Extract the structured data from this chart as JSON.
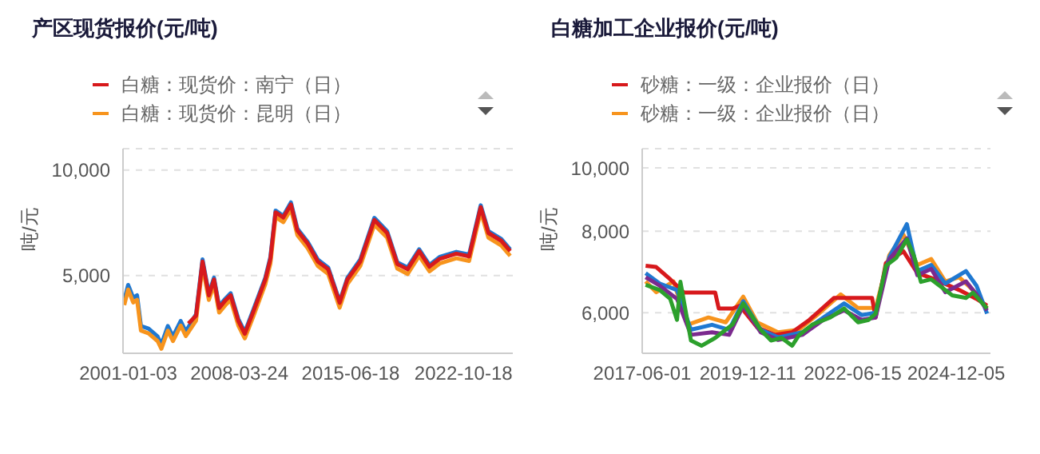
{
  "chart_data": [
    {
      "type": "line",
      "title": "产区现货报价(元/吨)",
      "ylabel": "吨/元",
      "legend": "top left",
      "grid": "y",
      "log": "y",
      "marker": "none",
      "line_style": "solid",
      "xlim": [
        "2000-09-01",
        "2026-01-01"
      ],
      "xticks": [
        {
          "value": "2001-01-03",
          "label": "2001-01-03"
        },
        {
          "value": "2008-03-24",
          "label": "2008-03-24"
        },
        {
          "value": "2015-06-18",
          "label": "2015-06-18"
        },
        {
          "value": "2022-10-18",
          "label": "2022-10-18"
        }
      ],
      "ylim": [
        3000,
        11500
      ],
      "yticks": [
        {
          "value": 5000,
          "label": "5,000"
        },
        {
          "value": 10000,
          "label": "10,000"
        }
      ],
      "series": [
        {
          "color": "#1f78d1",
          "x": [
            "2000-10",
            "2001-01",
            "2001-05",
            "2001-08",
            "2001-11",
            "2002-05",
            "2002-12",
            "2003-03",
            "2003-08",
            "2003-12",
            "2004-06",
            "2004-10",
            "2005-06",
            "2005-11",
            "2006-04",
            "2006-08",
            "2006-12",
            "2007-05",
            "2007-09",
            "2008-03",
            "2008-08",
            "2009-03",
            "2009-12",
            "2010-04",
            "2010-08",
            "2011-02",
            "2011-08",
            "2012-01",
            "2012-09",
            "2013-05",
            "2014-01",
            "2014-10",
            "2015-04",
            "2016-02",
            "2017-01",
            "2017-11",
            "2018-07",
            "2019-03",
            "2019-12",
            "2020-08",
            "2021-04",
            "2022-05",
            "2023-03",
            "2023-12",
            "2024-06",
            "2025-04",
            "2025-11"
          ],
          "values": [
            4250,
            4700,
            4320,
            4390,
            3590,
            3530,
            3350,
            3180,
            3590,
            3350,
            3710,
            3460,
            3880,
            5560,
            4440,
            4930,
            4090,
            4300,
            4450,
            3760,
            3450,
            4020,
            4930,
            5650,
            7660,
            7400,
            8080,
            6800,
            6240,
            5550,
            5270,
            4220,
            4920,
            5550,
            7300,
            6690,
            5450,
            5270,
            5940,
            5360,
            5650,
            5840,
            5740,
            7930,
            6690,
            6360,
            5930
          ]
        },
        {
          "name": "白糖：现货价：昆明（日）",
          "color": "#f7941d",
          "x": [
            "2000-10",
            "2001-01",
            "2001-05",
            "2001-08",
            "2001-11",
            "2002-05",
            "2002-12",
            "2003-03",
            "2003-08",
            "2003-12",
            "2004-06",
            "2004-10",
            "2005-06",
            "2005-11",
            "2006-04",
            "2006-08",
            "2006-12",
            "2007-05",
            "2007-09",
            "2008-03",
            "2008-08",
            "2009-03",
            "2009-12",
            "2010-04",
            "2010-08",
            "2011-02",
            "2011-08",
            "2012-01",
            "2012-09",
            "2013-05",
            "2014-01",
            "2014-10",
            "2015-04",
            "2016-02",
            "2017-01",
            "2017-11",
            "2018-07",
            "2019-03",
            "2019-12",
            "2020-08",
            "2021-04",
            "2022-05",
            "2023-03",
            "2023-12",
            "2024-06",
            "2025-04",
            "2025-11"
          ],
          "values": [
            4120,
            4560,
            4190,
            4260,
            3480,
            3420,
            3250,
            3090,
            3480,
            3250,
            3600,
            3360,
            3720,
            5320,
            4260,
            4720,
            3920,
            4120,
            4260,
            3600,
            3310,
            3850,
            4720,
            5410,
            7340,
            7100,
            7730,
            6520,
            5980,
            5320,
            5050,
            4050,
            4720,
            5320,
            6980,
            6410,
            5230,
            5050,
            5690,
            5140,
            5410,
            5600,
            5500,
            7600,
            6410,
            6090,
            5690
          ]
        },
        {
          "name": "白糖：现货价：南宁（日）",
          "color": "#d7191c",
          "x": [
            "2004-12",
            "2005-06",
            "2005-11",
            "2006-04",
            "2006-08",
            "2006-12",
            "2007-05",
            "2007-09",
            "2008-03",
            "2008-08",
            "2009-03",
            "2009-12",
            "2010-04",
            "2010-08",
            "2011-02",
            "2011-08",
            "2012-01",
            "2012-09",
            "2013-05",
            "2014-01",
            "2014-10",
            "2015-04",
            "2016-02",
            "2017-01",
            "2017-11",
            "2018-07",
            "2019-03",
            "2019-12",
            "2020-08",
            "2021-04",
            "2022-05",
            "2023-03",
            "2023-12",
            "2024-06",
            "2025-04",
            "2025-11"
          ],
          "values": [
            3650,
            3840,
            5480,
            4390,
            4870,
            4040,
            4250,
            4390,
            3710,
            3410,
            3970,
            4870,
            5580,
            7570,
            7320,
            7970,
            6720,
            6170,
            5480,
            5210,
            4180,
            4870,
            5480,
            7200,
            6610,
            5390,
            5210,
            5870,
            5300,
            5580,
            5770,
            5670,
            7830,
            6610,
            6280,
            5870
          ]
        }
      ]
    },
    {
      "type": "line",
      "title": "白糖加工企业报价(元/吨)",
      "ylabel": "吨/元",
      "legend": "top left",
      "grid": "y",
      "log": "y",
      "marker": "none",
      "line_style": "solid",
      "xlim": [
        "2017-06-01",
        "2025-10-01"
      ],
      "xticks": [
        {
          "value": "2017-06-01",
          "label": "2017-06-01"
        },
        {
          "value": "2019-12-11",
          "label": "2019-12-11"
        },
        {
          "value": "2022-06-15",
          "label": "2022-06-15"
        },
        {
          "value": "2024-12-05",
          "label": "2024-12-05"
        }
      ],
      "ylim": [
        5200,
        10700
      ],
      "yticks": [
        {
          "value": 6000,
          "label": "6,000"
        },
        {
          "value": 8000,
          "label": "8,000"
        },
        {
          "value": 10000,
          "label": "10,000"
        }
      ],
      "series": [
        {
          "name": "砂糖：一级：企业报价（日）",
          "color": "#f7941d",
          "x": [
            "2017-07",
            "2017-10",
            "2018-03",
            "2018-07",
            "2019-01",
            "2019-06",
            "2019-11",
            "2020-03",
            "2020-09",
            "2021-03",
            "2021-09",
            "2022-03",
            "2022-08",
            "2023-01",
            "2023-05",
            "2023-09",
            "2024-01",
            "2024-05",
            "2024-09",
            "2025-01",
            "2025-05",
            "2025-09"
          ],
          "values": [
            6700,
            6450,
            6700,
            5750,
            5900,
            5800,
            6350,
            5800,
            5600,
            5650,
            6000,
            6400,
            6100,
            6100,
            7350,
            7900,
            7100,
            7250,
            6700,
            6800,
            6500,
            6100
          ]
        },
        {
          "name": "砂糖：一级：企业报价（日）",
          "color": "#d7191c",
          "x": [
            "2017-07",
            "2017-10",
            "2018-02",
            "2018-06",
            "2019-03",
            "2019-04",
            "2019-08",
            "2019-10",
            "2020-03",
            "2020-08",
            "2021-01",
            "2021-06",
            "2022-01",
            "2022-12",
            "2023-01",
            "2023-04",
            "2023-09",
            "2024-01",
            "2024-06",
            "2025-01",
            "2025-06",
            "2025-09"
          ],
          "values": [
            7080,
            7050,
            6750,
            6440,
            6440,
            6090,
            6090,
            6150,
            5700,
            5550,
            5600,
            5850,
            6320,
            6320,
            5900,
            7150,
            7450,
            6900,
            6750,
            6500,
            6300,
            6150
          ]
        },
        {
          "color": "#1f78d1",
          "x": [
            "2017-07",
            "2017-11",
            "2018-04",
            "2018-08",
            "2019-02",
            "2019-07",
            "2019-11",
            "2020-04",
            "2020-09",
            "2021-04",
            "2021-10",
            "2022-04",
            "2022-09",
            "2023-01",
            "2023-05",
            "2023-10",
            "2024-01",
            "2024-05",
            "2024-09",
            "2025-03",
            "2025-06",
            "2025-09"
          ],
          "values": [
            6900,
            6650,
            6500,
            5650,
            5750,
            5650,
            6250,
            5650,
            5500,
            5600,
            5900,
            6200,
            5950,
            6000,
            7300,
            8200,
            6950,
            7100,
            6650,
            6950,
            6600,
            5980
          ]
        },
        {
          "color": "#7b2a8e",
          "x": [
            "2017-07",
            "2017-11",
            "2018-04",
            "2018-08",
            "2019-02",
            "2019-07",
            "2019-11",
            "2020-04",
            "2020-09",
            "2021-04",
            "2021-10",
            "2022-04",
            "2022-09",
            "2023-01",
            "2023-05",
            "2023-10",
            "2024-01",
            "2024-05",
            "2024-09",
            "2025-03",
            "2025-06",
            "2025-09"
          ],
          "values": [
            6800,
            6600,
            6300,
            5550,
            5600,
            5550,
            6150,
            5600,
            5450,
            5550,
            5850,
            6050,
            5850,
            5900,
            7250,
            7800,
            6850,
            7000,
            6450,
            6700,
            6400,
            6050
          ]
        },
        {
          "color": "#2ca02c",
          "x": [
            "2017-07",
            "2017-11",
            "2018-02",
            "2018-04",
            "2018-05",
            "2018-08",
            "2018-11",
            "2019-03",
            "2019-08",
            "2019-11",
            "2020-01",
            "2020-04",
            "2020-07",
            "2020-10",
            "2021-01",
            "2021-03",
            "2021-07",
            "2021-12",
            "2022-04",
            "2022-08",
            "2022-11",
            "2023-01",
            "2023-04",
            "2023-07",
            "2023-10",
            "2023-12",
            "2024-02",
            "2024-05",
            "2024-08",
            "2024-11",
            "2025-03",
            "2025-05",
            "2025-09"
          ],
          "values": [
            6620,
            6500,
            6300,
            5850,
            6690,
            5440,
            5340,
            5490,
            5760,
            6200,
            5980,
            5650,
            5440,
            5490,
            5340,
            5540,
            5760,
            5900,
            6090,
            5800,
            5850,
            5980,
            7080,
            7280,
            7770,
            7340,
            6690,
            6750,
            6560,
            6380,
            6320,
            6440,
            6090
          ]
        }
      ]
    }
  ]
}
